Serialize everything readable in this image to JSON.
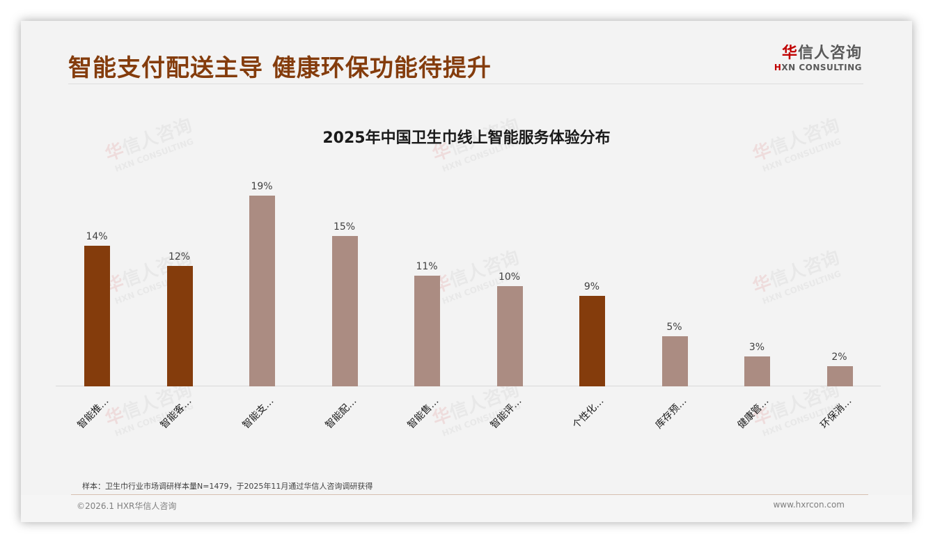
{
  "header": {
    "title": "智能支付配送主导 健康环保功能待提升",
    "logo_cn_first": "华",
    "logo_cn_rest": "信人咨询",
    "logo_en_mark": "H",
    "logo_en_rest": "XN CONSULTING"
  },
  "watermark": {
    "cn_first": "华",
    "cn_rest": "信人咨询",
    "en": "HXN CONSULTING"
  },
  "colors": {
    "highlight": "#843c0c",
    "normal": "#ab8c82",
    "title": "#843c0c",
    "logo_red": "#c00000"
  },
  "chart_data": {
    "type": "bar",
    "title": "2025年中国卫生巾线上智能服务体验分布",
    "xlabel": "",
    "ylabel": "",
    "ylim": [
      0,
      20
    ],
    "grid": false,
    "legend": "none",
    "categories": [
      "智能推…",
      "智能客…",
      "智能支…",
      "智能配…",
      "智能售…",
      "智能评…",
      "个性化…",
      "库存预…",
      "健康管…",
      "环保消…"
    ],
    "values": [
      14,
      12,
      19,
      15,
      11,
      10,
      9,
      5,
      3,
      2
    ],
    "value_labels": [
      "14%",
      "12%",
      "19%",
      "15%",
      "11%",
      "10%",
      "9%",
      "5%",
      "3%",
      "2%"
    ],
    "highlighted": [
      true,
      true,
      false,
      false,
      false,
      false,
      true,
      false,
      false,
      false
    ],
    "unit": "%"
  },
  "footer": {
    "note": "样本：卫生巾行业市场调研样本量N=1479，于2025年11月通过华信人咨询调研获得",
    "copyright": "©2026.1 HXR华信人咨询",
    "website": "www.hxrcon.com"
  }
}
